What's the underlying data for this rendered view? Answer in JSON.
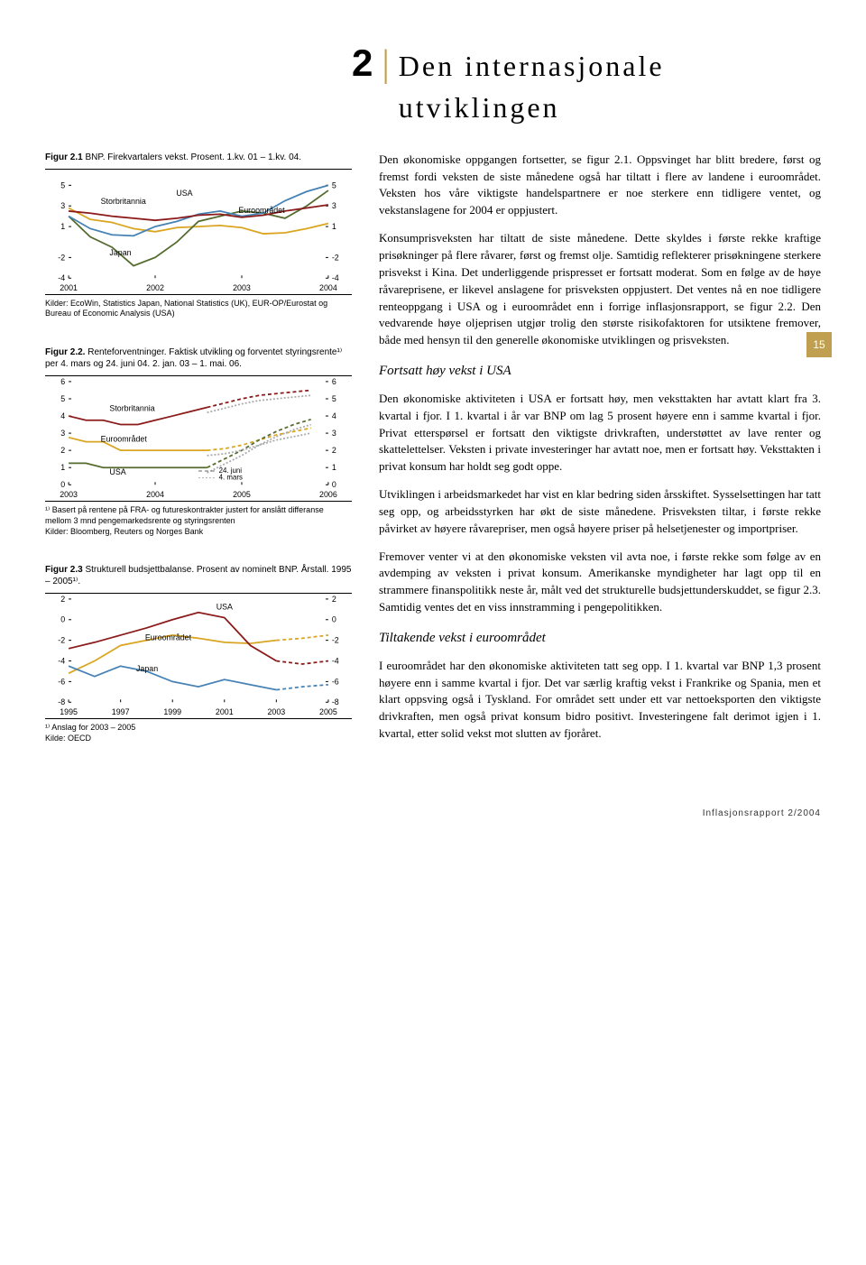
{
  "chapter": {
    "number": "2",
    "title": "Den internasjonale utviklingen"
  },
  "page_number": "15",
  "footer": "Inflasjonsrapport 2/2004",
  "body": {
    "p1": "Den økonomiske oppgangen fortsetter, se figur 2.1. Oppsvinget har blitt bredere, først og fremst fordi veksten de siste månedene også har tiltatt i flere av landene i euroområdet. Veksten hos våre viktigste handelspartnere er noe sterkere enn tidligere ventet, og vekstanslagene for 2004 er oppjustert.",
    "p2": "Konsumprisveksten har tiltatt de siste månedene. Dette skyldes i første rekke kraftige prisøkninger på flere råvarer, først og fremst olje. Samtidig reflekterer prisøkningene sterkere prisvekst i Kina. Det underliggende prispresset er fortsatt moderat. Som en følge av de høye råvareprisene, er likevel anslagene for prisveksten oppjustert. Det ventes nå en noe tidligere renteoppgang i USA og i euroområdet enn i forrige inflasjonsrapport, se figur 2.2. Den vedvarende høye oljeprisen utgjør trolig den største risikofaktoren for utsiktene fremover, både med hensyn til den generelle økonomiske utviklingen og prisveksten.",
    "h1": "Fortsatt høy vekst i USA",
    "p3": "Den økonomiske aktiviteten i USA er fortsatt høy, men veksttakten har avtatt klart fra 3. kvartal i fjor. I 1. kvartal i år var BNP om lag 5 prosent høyere enn i samme kvartal i fjor. Privat etterspørsel er fortsatt den viktigste drivkraften, understøttet av lave renter og skattelettelser. Veksten i private investeringer har avtatt noe, men er fortsatt høy. Veksttakten i privat konsum har holdt seg godt oppe.",
    "p4": "Utviklingen i arbeidsmarkedet har vist en klar bedring siden årsskiftet. Sysselsettingen har tatt seg opp, og arbeidsstyrken har økt de siste månedene. Prisveksten tiltar, i første rekke påvirket av høyere råvarepriser, men også høyere priser på helsetjenester og importpriser.",
    "p5": "Fremover venter vi at den økonomiske veksten vil avta noe, i første rekke som følge av en avdemping av veksten i privat konsum. Amerikanske myndigheter har lagt opp til en strammere finanspolitikk neste år, målt ved det strukturelle budsjettunderskuddet, se figur 2.3. Samtidig ventes det en viss innstramming i pengepolitikken.",
    "h2": "Tiltakende vekst i euroområdet",
    "p6": "I euroområdet har den økonomiske aktiviteten tatt seg opp. I 1. kvartal var BNP 1,3 prosent høyere enn i samme kvartal i fjor. Det var særlig kraftig vekst i Frankrike og Spania, men et klart oppsving også i Tyskland. For området sett under ett var nettoeksporten den viktigste drivkraften, men også privat konsum bidro positivt. Investeringene falt derimot igjen i 1. kvartal, etter solid vekst mot slutten av fjoråret."
  },
  "fig21": {
    "caption_bold": "Figur 2.1",
    "caption_rest": " BNP. Firekvartalers vekst. Prosent. 1.kv. 01 – 1.kv. 04.",
    "source": "Kilder: EcoWin, Statistics Japan, National Statistics (UK), EUR-OP/Eurostat og Bureau of Economic Analysis (USA)",
    "labels": {
      "storbritannia": "Storbritannia",
      "usa": "USA",
      "euro": "Euroområdet",
      "japan": "Japan"
    },
    "xticks": [
      "2001",
      "2002",
      "2003",
      "2004"
    ],
    "yticks": [
      5,
      3,
      1,
      -2,
      -4
    ],
    "colors": {
      "storbritannia": "#8b1a1a",
      "usa": "#4682b4",
      "euro": "#daa520",
      "japan": "#556b2f",
      "border": "#000000",
      "axis_text": "#000000"
    },
    "series": {
      "storbritannia": [
        2.5,
        2.3,
        2.0,
        1.8,
        1.6,
        1.8,
        2.1,
        2.2,
        1.9,
        2.1,
        2.5,
        2.8,
        3.1
      ],
      "usa": [
        2.0,
        0.8,
        0.2,
        0.1,
        1.0,
        1.5,
        2.2,
        2.5,
        2.0,
        2.3,
        3.5,
        4.4,
        5.0
      ],
      "euro": [
        2.8,
        1.7,
        1.4,
        0.8,
        0.5,
        0.9,
        1.0,
        1.1,
        0.9,
        0.3,
        0.4,
        0.8,
        1.3
      ],
      "japan": [
        2.0,
        0.0,
        -1.0,
        -2.8,
        -2.0,
        -0.5,
        1.5,
        2.0,
        2.5,
        2.3,
        1.8,
        3.0,
        4.5
      ]
    },
    "x_domain": [
      0,
      12
    ],
    "y_domain": [
      -4,
      6
    ]
  },
  "fig22": {
    "caption_bold": "Figur 2.2.",
    "caption_rest": " Renteforventninger. Faktisk utvikling og forventet styringsrente¹⁾ per 4. mars og 24. juni 04. 2. jan. 03 – 1. mai. 06.",
    "footnote": "¹⁾ Basert på rentene på FRA- og futureskontrakter justert for anslått differanse mellom 3 mnd pengemarkedsrente og styringsrenten",
    "source": "Kilder: Bloomberg, Reuters og Norges Bank",
    "labels": {
      "storbritannia": "Storbritannia",
      "usa": "USA",
      "euro": "Euroområdet",
      "juni": "24. juni",
      "mars": "4. mars"
    },
    "xticks": [
      "2003",
      "2004",
      "2005",
      "2006"
    ],
    "yticks": [
      6,
      5,
      4,
      3,
      2,
      1,
      0
    ],
    "colors": {
      "storbritannia": "#8b1a1a",
      "usa": "#556b2f",
      "euro": "#daa520",
      "forecast_juni_dash": "#777777",
      "forecast_mars_dot": "#aaaaaa",
      "label_bg": "#ffffff"
    },
    "series": {
      "storbritannia": [
        4.0,
        3.75,
        3.75,
        3.5,
        3.5,
        3.75,
        4.0,
        4.25,
        4.5
      ],
      "storbritannia_f": [
        4.5,
        4.75,
        5.0,
        5.2,
        5.3,
        5.4,
        5.5
      ],
      "euro": [
        2.75,
        2.5,
        2.5,
        2.0,
        2.0,
        2.0,
        2.0,
        2.0,
        2.0
      ],
      "euro_f": [
        2.0,
        2.1,
        2.3,
        2.6,
        2.9,
        3.1,
        3.3
      ],
      "usa": [
        1.25,
        1.25,
        1.0,
        1.0,
        1.0,
        1.0,
        1.0,
        1.0,
        1.0
      ],
      "usa_f": [
        1.0,
        1.5,
        2.0,
        2.6,
        3.1,
        3.5,
        3.8
      ]
    },
    "x_domain": [
      0,
      15
    ],
    "y_domain": [
      0,
      6
    ]
  },
  "fig23": {
    "caption_bold": "Figur 2.3",
    "caption_rest": " Strukturell budsjettbalanse. Prosent av nominelt BNP. Årstall. 1995 – 2005¹⁾.",
    "footnote": "¹⁾ Anslag for 2003 – 2005",
    "source": "Kilde: OECD",
    "labels": {
      "usa": "USA",
      "euro": "Euroområdet",
      "japan": "Japan"
    },
    "xticks": [
      "1995",
      "1997",
      "1999",
      "2001",
      "2003",
      "2005"
    ],
    "yticks": [
      2,
      0,
      -2,
      -4,
      -6,
      -8
    ],
    "colors": {
      "usa": "#8b1a1a",
      "euro": "#daa520",
      "japan": "#4682b4"
    },
    "series": {
      "usa": [
        -2.8,
        -2.2,
        -1.5,
        -0.8,
        0.0,
        0.7,
        0.2,
        -2.5,
        -4.0,
        -4.3,
        -4.0
      ],
      "euro": [
        -5.2,
        -4.0,
        -2.5,
        -2.0,
        -1.5,
        -1.8,
        -2.2,
        -2.3,
        -2.0,
        -1.8,
        -1.5
      ],
      "japan": [
        -4.5,
        -5.5,
        -4.5,
        -5.0,
        -6.0,
        -6.5,
        -5.8,
        -6.3,
        -6.8,
        -6.5,
        -6.3
      ]
    },
    "x_domain": [
      0,
      10
    ],
    "y_domain": [
      -8,
      2
    ]
  }
}
